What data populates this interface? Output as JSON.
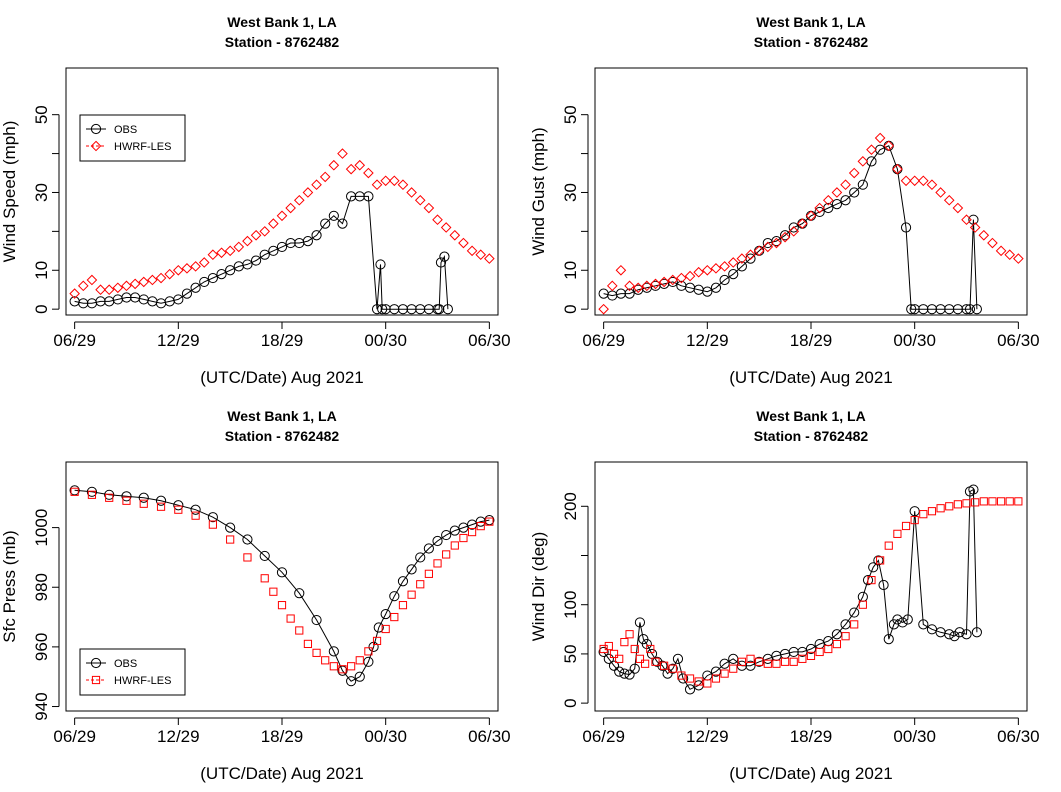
{
  "figure": {
    "title_line1": "West Bank 1, LA",
    "title_line2": "Station - 8762482",
    "xlabel": "(UTC/Date) Aug 2021",
    "xtick_labels": [
      "06/29",
      "12/29",
      "18/29",
      "00/30",
      "06/30"
    ],
    "legend": [
      "OBS",
      "HWRF-LES"
    ],
    "colors": {
      "obs": "#000000",
      "hwrf": "#ff0000",
      "axis": "#000000"
    }
  },
  "chart_data": [
    {
      "type": "line",
      "title": "West Bank 1, LA\nStation - 8762482",
      "xlabel": "(UTC/Date) Aug 2021",
      "ylabel": "Wind Speed (mph)",
      "x_unit": "hours since 06 UTC 29 Aug 2021",
      "xlim": [
        -0.5,
        24.5
      ],
      "ylim": [
        -1.5,
        62
      ],
      "yticks": [
        0,
        10,
        30,
        50
      ],
      "legend_position": "top-left",
      "series": [
        {
          "name": "OBS",
          "marker": "open-circle",
          "line": true,
          "x": [
            0,
            0.5,
            1,
            1.5,
            2,
            2.5,
            3,
            3.5,
            4,
            4.5,
            5,
            5.5,
            6,
            6.5,
            7,
            7.5,
            8,
            8.5,
            9,
            9.5,
            10,
            10.5,
            11,
            11.5,
            12,
            12.5,
            13,
            13.5,
            14,
            14.5,
            15,
            15.5,
            16,
            16.5,
            17,
            17.5,
            17.7,
            17.8,
            18,
            18.5,
            19,
            19.5,
            20,
            20.5,
            21,
            21.1,
            21.2,
            21.4,
            21.6
          ],
          "values": [
            2,
            1.5,
            1.5,
            2,
            2,
            2.5,
            3,
            3,
            2.5,
            2,
            1.5,
            2,
            2.5,
            4,
            5.5,
            7,
            8,
            9,
            10,
            11,
            11.5,
            12.5,
            14,
            15,
            16,
            17,
            17,
            17.5,
            19,
            22,
            24,
            22,
            29,
            29,
            29,
            0,
            11.5,
            0,
            0,
            0,
            0,
            0,
            0,
            0,
            0,
            0,
            12,
            13.5,
            0
          ]
        },
        {
          "name": "HWRF-LES",
          "marker": "open-diamond",
          "line": false,
          "x": [
            0,
            0.5,
            1,
            1.5,
            2,
            2.5,
            3,
            3.5,
            4,
            4.5,
            5,
            5.5,
            6,
            6.5,
            7,
            7.5,
            8,
            8.5,
            9,
            9.5,
            10,
            10.5,
            11,
            11.5,
            12,
            12.5,
            13,
            13.5,
            14,
            14.5,
            15,
            15.5,
            16,
            16.5,
            17,
            17.5,
            18,
            18.5,
            19,
            19.5,
            20,
            20.5,
            21,
            21.5,
            22,
            22.5,
            23,
            23.5,
            24
          ],
          "values": [
            4,
            6,
            7.5,
            5,
            5,
            5.5,
            6,
            6.5,
            7,
            7.5,
            8,
            9,
            10,
            10.5,
            11,
            12,
            14,
            14.5,
            15,
            16,
            17.5,
            19,
            20,
            22,
            24,
            26,
            28,
            30,
            32,
            34,
            37,
            40,
            36,
            37,
            35,
            32,
            33,
            33,
            32,
            30,
            28,
            26,
            23,
            21,
            19,
            17,
            15,
            14,
            13
          ]
        }
      ]
    },
    {
      "type": "line",
      "title": "West Bank 1, LA\nStation - 8762482",
      "xlabel": "(UTC/Date) Aug 2021",
      "ylabel": "Wind Gust (mph)",
      "x_unit": "hours since 06 UTC 29 Aug 2021",
      "xlim": [
        -0.5,
        24.5
      ],
      "ylim": [
        -1.5,
        62
      ],
      "yticks": [
        0,
        10,
        30,
        50
      ],
      "legend_position": "none",
      "series": [
        {
          "name": "OBS",
          "marker": "open-circle",
          "line": true,
          "x": [
            0,
            0.5,
            1,
            1.5,
            2,
            2.5,
            3,
            3.5,
            4,
            4.5,
            5,
            5.5,
            6,
            6.5,
            7,
            7.5,
            8,
            8.5,
            9,
            9.5,
            10,
            10.5,
            11,
            11.5,
            12,
            12.5,
            13,
            13.5,
            14,
            14.5,
            15,
            15.5,
            16,
            16.5,
            17,
            17.5,
            17.8,
            18,
            18.5,
            19,
            19.5,
            20,
            20.5,
            21,
            21.2,
            21.4,
            21.6
          ],
          "values": [
            4,
            3.5,
            4,
            4,
            5,
            5.5,
            6,
            6.5,
            7,
            6,
            5.5,
            5,
            4.5,
            5.5,
            7.5,
            9,
            11,
            13,
            15,
            17,
            17.5,
            19,
            21,
            22,
            24,
            25,
            26,
            27,
            28,
            30,
            32,
            38,
            41,
            42,
            36,
            21,
            0,
            0,
            0,
            0,
            0,
            0,
            0,
            0,
            0,
            23,
            0
          ]
        },
        {
          "name": "HWRF-LES",
          "marker": "open-diamond",
          "line": false,
          "x": [
            0,
            0.5,
            1,
            1.5,
            2,
            2.5,
            3,
            3.5,
            4,
            4.5,
            5,
            5.5,
            6,
            6.5,
            7,
            7.5,
            8,
            8.5,
            9,
            9.5,
            10,
            10.5,
            11,
            11.5,
            12,
            12.5,
            13,
            13.5,
            14,
            14.5,
            15,
            15.5,
            16,
            16.5,
            17,
            17.5,
            18,
            18.5,
            19,
            19.5,
            20,
            20.5,
            21,
            21.5,
            22,
            22.5,
            23,
            23.5,
            24
          ],
          "values": [
            0,
            6,
            10,
            6,
            5.5,
            6,
            6.5,
            7,
            7.5,
            8,
            8.5,
            9.5,
            10,
            10.5,
            11,
            12,
            13,
            14,
            15,
            16,
            17,
            18.5,
            20,
            22,
            24,
            26,
            28,
            30,
            32,
            35,
            38,
            41,
            44,
            42,
            36,
            33,
            33,
            33,
            32,
            30,
            28,
            26,
            23,
            21,
            19,
            17,
            15,
            14,
            13
          ]
        }
      ]
    },
    {
      "type": "line",
      "title": "West Bank 1, LA\nStation - 8762482",
      "xlabel": "(UTC/Date) Aug 2021",
      "ylabel": "Sfc Press (mb)",
      "x_unit": "hours since 06 UTC 29 Aug 2021",
      "xlim": [
        -0.5,
        24.5
      ],
      "ylim": [
        938.5,
        1022
      ],
      "yticks": [
        940,
        960,
        980,
        1000
      ],
      "legend_position": "bottom-left",
      "series": [
        {
          "name": "OBS",
          "marker": "open-circle",
          "line": true,
          "x": [
            0,
            1,
            2,
            3,
            4,
            5,
            6,
            7,
            8,
            9,
            10,
            11,
            12,
            13,
            14,
            15,
            15.5,
            16,
            16.5,
            17,
            17.3,
            17.6,
            18,
            18.5,
            19,
            19.5,
            20,
            20.5,
            21,
            21.5,
            22,
            22.5,
            23,
            23.5,
            24
          ],
          "values": [
            1012.5,
            1012,
            1011,
            1010.5,
            1010,
            1009,
            1007.5,
            1006,
            1003.5,
            1000,
            996,
            990.5,
            985,
            978,
            969,
            958.5,
            952,
            948.5,
            950,
            955,
            960,
            966.5,
            971,
            977,
            982,
            986,
            990,
            993,
            995.5,
            997.5,
            999,
            1000,
            1001,
            1002,
            1002.5
          ]
        },
        {
          "name": "HWRF-LES",
          "marker": "open-square",
          "line": false,
          "x": [
            0,
            1,
            2,
            3,
            4,
            5,
            6,
            7,
            8,
            9,
            10,
            11,
            11.5,
            12,
            12.5,
            13,
            13.5,
            14,
            14.5,
            15,
            15.5,
            16,
            16.5,
            17,
            17.5,
            18,
            18.5,
            19,
            19.5,
            20,
            20.5,
            21,
            21.5,
            22,
            22.5,
            23,
            23.5,
            24
          ],
          "values": [
            1012,
            1011,
            1010,
            1009,
            1008,
            1007,
            1006,
            1004,
            1001,
            996,
            990,
            983,
            978.5,
            974,
            969.5,
            965.5,
            961,
            958,
            955.5,
            953.5,
            952.5,
            953.5,
            955.5,
            958.5,
            962,
            966,
            970,
            974,
            977.5,
            981,
            984.5,
            988,
            991,
            994,
            996.5,
            998.5,
            1000.5,
            1002
          ]
        }
      ]
    },
    {
      "type": "line",
      "title": "West Bank 1, LA\nStation - 8762482",
      "xlabel": "(UTC/Date) Aug 2021",
      "ylabel": "Wind Dir (deg)",
      "x_unit": "hours since 06 UTC 29 Aug 2021",
      "xlim": [
        -0.5,
        24.5
      ],
      "ylim": [
        -8,
        245
      ],
      "yticks": [
        0,
        50,
        100,
        200
      ],
      "legend_position": "none",
      "series": [
        {
          "name": "OBS",
          "marker": "open-circle",
          "line": true,
          "x": [
            0,
            0.3,
            0.6,
            0.9,
            1.2,
            1.5,
            1.8,
            2.1,
            2.3,
            2.5,
            2.8,
            3.1,
            3.4,
            3.7,
            4,
            4.3,
            4.6,
            5,
            5.5,
            6,
            6.5,
            7,
            7.5,
            8,
            8.5,
            9,
            9.5,
            10,
            10.5,
            11,
            11.5,
            12,
            12.5,
            13,
            13.5,
            14,
            14.5,
            15,
            15.3,
            15.6,
            15.9,
            16.2,
            16.5,
            16.8,
            17,
            17.3,
            17.6,
            18,
            18.5,
            19,
            19.5,
            20,
            20.3,
            20.6,
            21,
            21.2,
            21.4,
            21.6
          ],
          "values": [
            52,
            45,
            38,
            32,
            30,
            29,
            35,
            82,
            65,
            60,
            50,
            42,
            38,
            30,
            35,
            45,
            25,
            14,
            18,
            28,
            32,
            40,
            45,
            38,
            38,
            42,
            45,
            48,
            50,
            52,
            52,
            55,
            60,
            63,
            70,
            80,
            92,
            108,
            125,
            138,
            145,
            120,
            65,
            80,
            85,
            82,
            85,
            195,
            80,
            75,
            72,
            70,
            68,
            72,
            70,
            215,
            217,
            72
          ]
        },
        {
          "name": "HWRF-LES",
          "marker": "open-square",
          "line": false,
          "x": [
            0,
            0.3,
            0.6,
            0.9,
            1.2,
            1.5,
            1.8,
            2.1,
            2.4,
            2.7,
            3,
            3.5,
            4,
            4.5,
            5,
            5.5,
            6,
            6.5,
            7,
            7.5,
            8,
            8.5,
            9,
            9.5,
            10,
            10.5,
            11,
            11.5,
            12,
            12.5,
            13,
            13.5,
            14,
            14.5,
            15,
            15.5,
            16,
            16.5,
            17,
            17.5,
            18,
            18.5,
            19,
            19.5,
            20,
            20.5,
            21,
            21.5,
            22,
            22.5,
            23,
            23.5,
            24
          ],
          "values": [
            55,
            58,
            50,
            45,
            62,
            70,
            55,
            45,
            40,
            55,
            42,
            38,
            35,
            28,
            25,
            22,
            20,
            25,
            30,
            35,
            42,
            45,
            42,
            40,
            40,
            42,
            42,
            45,
            48,
            52,
            55,
            60,
            68,
            80,
            100,
            125,
            145,
            160,
            172,
            180,
            186,
            192,
            195,
            198,
            200,
            202,
            203,
            204,
            205,
            205,
            205,
            205,
            205
          ]
        }
      ]
    }
  ]
}
